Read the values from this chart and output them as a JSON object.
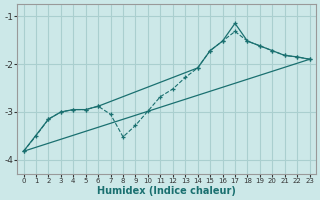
{
  "xlabel": "Humidex (Indice chaleur)",
  "bg_color": "#cce8e8",
  "grid_color": "#aacfcf",
  "line_color": "#1a7070",
  "xlim": [
    -0.5,
    23.5
  ],
  "ylim": [
    -4.3,
    -0.75
  ],
  "xticks": [
    0,
    1,
    2,
    3,
    4,
    5,
    6,
    7,
    8,
    9,
    10,
    11,
    12,
    13,
    14,
    15,
    16,
    17,
    18,
    19,
    20,
    21,
    22,
    23
  ],
  "yticks": [
    -4,
    -3,
    -2,
    -1
  ],
  "line1_x": [
    0,
    1,
    2,
    3,
    4,
    5,
    6,
    7,
    8,
    9,
    10,
    11,
    12,
    13,
    14,
    15,
    16,
    17,
    18,
    19,
    20,
    21,
    22,
    23
  ],
  "line1_y": [
    -3.82,
    -3.5,
    -3.15,
    -3.0,
    -2.95,
    -2.95,
    -2.88,
    -3.05,
    -3.52,
    -3.28,
    -2.98,
    -2.68,
    -2.52,
    -2.28,
    -2.08,
    -1.72,
    -1.52,
    -1.32,
    -1.52,
    -1.62,
    -1.72,
    -1.82,
    -1.85,
    -1.9
  ],
  "line2_x": [
    0,
    2,
    3,
    4,
    5,
    6,
    14,
    15,
    16,
    17,
    18,
    19,
    20,
    21,
    22,
    23
  ],
  "line2_y": [
    -3.82,
    -3.15,
    -3.0,
    -2.95,
    -2.95,
    -2.88,
    -2.08,
    -1.72,
    -1.52,
    -1.15,
    -1.52,
    -1.62,
    -1.72,
    -1.82,
    -1.85,
    -1.9
  ],
  "line3_x": [
    0,
    23
  ],
  "line3_y": [
    -3.82,
    -1.9
  ]
}
